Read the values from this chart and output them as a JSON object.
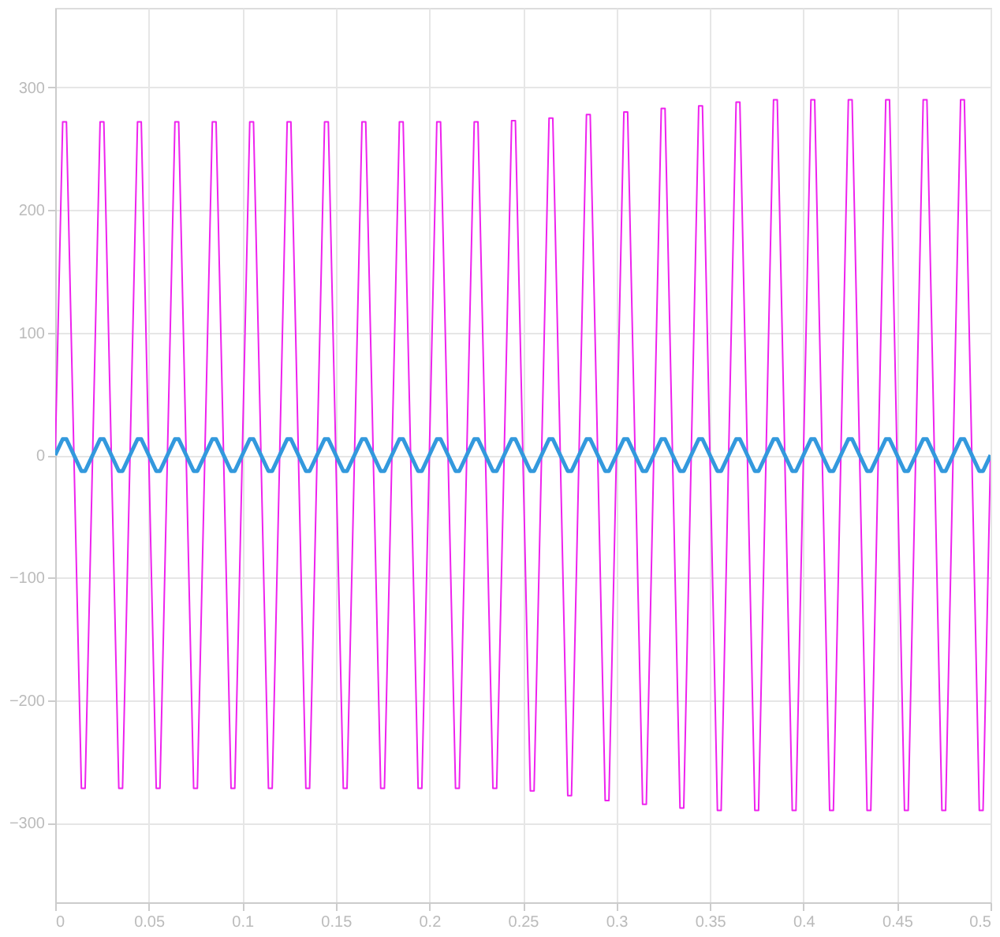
{
  "chart_data": {
    "type": "line",
    "x": [
      0,
      0.004,
      0.006,
      0.01,
      0.014,
      0.016,
      0.02,
      0.024,
      0.026,
      0.03,
      0.034,
      0.036,
      0.04,
      0.044,
      0.046,
      0.05,
      0.054,
      0.056,
      0.06,
      0.064,
      0.066,
      0.07,
      0.074,
      0.076,
      0.08,
      0.084,
      0.086,
      0.09,
      0.094,
      0.096,
      0.1,
      0.104,
      0.106,
      0.11,
      0.114,
      0.116,
      0.12,
      0.124,
      0.126,
      0.13,
      0.134,
      0.136,
      0.14,
      0.144,
      0.146,
      0.15,
      0.154,
      0.156,
      0.16,
      0.164,
      0.166,
      0.17,
      0.174,
      0.176,
      0.18,
      0.184,
      0.186,
      0.19,
      0.194,
      0.196,
      0.2,
      0.204,
      0.206,
      0.21,
      0.214,
      0.216,
      0.22,
      0.224,
      0.226,
      0.23,
      0.234,
      0.236,
      0.24,
      0.244,
      0.246,
      0.25,
      0.254,
      0.256,
      0.26,
      0.264,
      0.266,
      0.27,
      0.274,
      0.276,
      0.28,
      0.284,
      0.286,
      0.29,
      0.294,
      0.296,
      0.3,
      0.304,
      0.306,
      0.31,
      0.314,
      0.316,
      0.32,
      0.324,
      0.326,
      0.33,
      0.334,
      0.336,
      0.34,
      0.344,
      0.346,
      0.35,
      0.354,
      0.356,
      0.36,
      0.364,
      0.366,
      0.37,
      0.374,
      0.376,
      0.38,
      0.384,
      0.386,
      0.39,
      0.394,
      0.396,
      0.4,
      0.404,
      0.406,
      0.41,
      0.414,
      0.416,
      0.42,
      0.424,
      0.426,
      0.43,
      0.434,
      0.436,
      0.44,
      0.444,
      0.446,
      0.45,
      0.454,
      0.456,
      0.46,
      0.464,
      0.466,
      0.47,
      0.474,
      0.476,
      0.48,
      0.484,
      0.486,
      0.49,
      0.494,
      0.496,
      0.5
    ],
    "series": [
      {
        "color": "#ee22ee",
        "values": [
          0,
          272,
          272,
          0,
          -272,
          -272,
          0,
          272,
          272,
          0,
          -272,
          -272,
          0,
          272,
          272,
          0,
          -272,
          -272,
          0,
          272,
          272,
          0,
          -272,
          -272,
          0,
          272,
          272,
          0,
          -272,
          -272,
          0,
          272,
          272,
          0,
          -272,
          -272,
          0,
          272,
          272,
          0,
          -272,
          -272,
          0,
          272,
          272,
          0,
          -272,
          -272,
          0,
          272,
          272,
          0,
          -272,
          -272,
          0,
          272,
          272,
          0,
          -272,
          -272,
          0,
          272,
          272,
          0,
          -272,
          -272,
          0,
          272,
          272,
          0,
          -272,
          -272,
          0,
          273,
          273,
          0,
          -274,
          -274,
          0,
          275,
          275,
          0,
          -278,
          -278,
          0,
          278,
          278,
          0,
          -282,
          -282,
          0,
          280,
          280,
          0,
          -285,
          -285,
          0,
          283,
          283,
          0,
          -288,
          -288,
          0,
          285,
          285,
          0,
          -290,
          -290,
          0,
          288,
          288,
          0,
          -290,
          -290,
          0,
          290,
          290,
          0,
          -290,
          -290,
          0,
          290,
          290,
          0,
          -290,
          -290,
          0,
          290,
          290,
          0,
          -290,
          -290,
          0,
          290,
          290,
          0,
          -290,
          -290,
          0,
          290,
          290,
          0,
          -290,
          -290,
          0,
          290,
          290,
          0,
          -290,
          -290,
          0
        ]
      },
      {
        "color": "#3399dd",
        "values": [
          0,
          13,
          13,
          0,
          -13,
          -13,
          0,
          13,
          13,
          0,
          -13,
          -13,
          0,
          13,
          13,
          0,
          -13,
          -13,
          0,
          13,
          13,
          0,
          -13,
          -13,
          0,
          13,
          13,
          0,
          -13,
          -13,
          0,
          13,
          13,
          0,
          -13,
          -13,
          0,
          13,
          13,
          0,
          -13,
          -13,
          0,
          13,
          13,
          0,
          -13,
          -13,
          0,
          13,
          13,
          0,
          -13,
          -13,
          0,
          13,
          13,
          0,
          -13,
          -13,
          0,
          13,
          13,
          0,
          -13,
          -13,
          0,
          13,
          13,
          0,
          -13,
          -13,
          0,
          13,
          13,
          0,
          -13,
          -13,
          0,
          13,
          13,
          0,
          -13,
          -13,
          0,
          13,
          13,
          0,
          -13,
          -13,
          0,
          13,
          13,
          0,
          -13,
          -13,
          0,
          13,
          13,
          0,
          -13,
          -13,
          0,
          13,
          13,
          0,
          -13,
          -13,
          0,
          13,
          13,
          0,
          -13,
          -13,
          0,
          13,
          13,
          0,
          -13,
          -13,
          0,
          13,
          13,
          0,
          -13,
          -13,
          0,
          13,
          13,
          0,
          -13,
          -13,
          0,
          13,
          13,
          0,
          -13,
          -13,
          0,
          13,
          13,
          0,
          -13,
          -13,
          0,
          13,
          13,
          0,
          -13,
          -13,
          0
        ]
      }
    ],
    "xlim": [
      0,
      0.5
    ],
    "xticks": [
      0,
      0.05,
      0.1,
      0.15,
      0.2,
      0.25,
      0.3,
      0.35,
      0.4,
      0.45,
      0.5
    ],
    "ylim": [
      -365,
      365
    ],
    "yticks": [
      -300,
      -200,
      -100,
      0,
      100,
      200,
      300
    ],
    "grid": true
  }
}
